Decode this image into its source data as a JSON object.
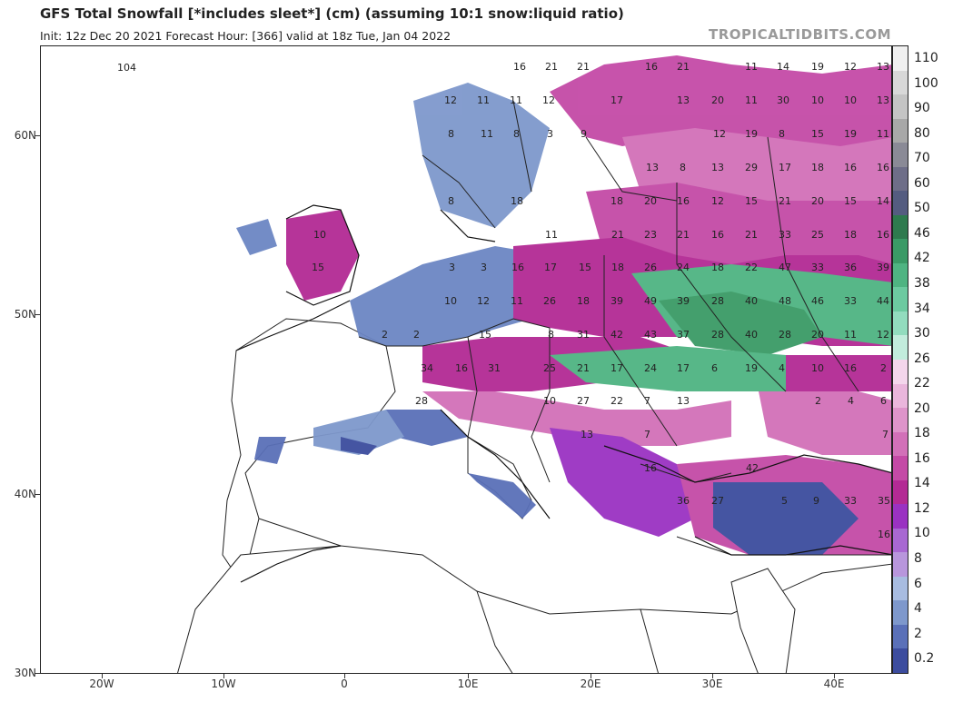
{
  "header": {
    "title": "GFS Total Snowfall [*includes sleet*] (cm) (assuming 10:1 snow:liquid ratio)",
    "subtitle": "Init: 12z Dec 20 2021   Forecast Hour: [366]   valid at 18z Tue, Jan 04 2022",
    "brand": "TROPICALTIDBITS.COM"
  },
  "axes": {
    "lat_labels": [
      "60N",
      "50N",
      "40N",
      "30N"
    ],
    "lon_labels": [
      "20W",
      "10W",
      "0",
      "10E",
      "20E",
      "30E",
      "40E"
    ]
  },
  "colorbar": {
    "labels": [
      "110",
      "100",
      "90",
      "80",
      "70",
      "60",
      "50",
      "46",
      "42",
      "38",
      "34",
      "30",
      "26",
      "22",
      "20",
      "18",
      "16",
      "14",
      "12",
      "10",
      "8",
      "6",
      "4",
      "2",
      "0.2"
    ],
    "colors": [
      "#f0f0f0",
      "#d8d8d8",
      "#c4c4c4",
      "#a8a8a8",
      "#8a8a96",
      "#6e6e88",
      "#545c80",
      "#2e7a4e",
      "#3a9a66",
      "#4fb482",
      "#6ccaa0",
      "#92dcbe",
      "#c2ecdc",
      "#f4d6ec",
      "#eab6dc",
      "#de94ca",
      "#d270b8",
      "#c44aa6",
      "#b32a94",
      "#9a32c2",
      "#a868d2",
      "#b896dc",
      "#a8bce0",
      "#7e98cc",
      "#5a70b8",
      "#3c4c9e"
    ]
  },
  "map_values": [
    {
      "v": "104"
    },
    {
      "v": "16"
    },
    {
      "v": "21"
    },
    {
      "v": "21"
    },
    {
      "v": "16"
    },
    {
      "v": "21"
    },
    {
      "v": "11"
    },
    {
      "v": "14"
    },
    {
      "v": "19"
    },
    {
      "v": "12"
    },
    {
      "v": "13"
    },
    {
      "v": "12"
    },
    {
      "v": "11"
    },
    {
      "v": "11"
    },
    {
      "v": "12"
    },
    {
      "v": "17"
    },
    {
      "v": "13"
    },
    {
      "v": "20"
    },
    {
      "v": "11"
    },
    {
      "v": "30"
    },
    {
      "v": "10"
    },
    {
      "v": "10"
    },
    {
      "v": "13"
    },
    {
      "v": "8"
    },
    {
      "v": "11"
    },
    {
      "v": "8"
    },
    {
      "v": "3"
    },
    {
      "v": "9"
    },
    {
      "v": "12"
    },
    {
      "v": "19"
    },
    {
      "v": "8"
    },
    {
      "v": "15"
    },
    {
      "v": "19"
    },
    {
      "v": "11"
    },
    {
      "v": "13"
    },
    {
      "v": "8"
    },
    {
      "v": "13"
    },
    {
      "v": "29"
    },
    {
      "v": "17"
    },
    {
      "v": "18"
    },
    {
      "v": "16"
    },
    {
      "v": "16"
    },
    {
      "v": "8"
    },
    {
      "v": "18"
    },
    {
      "v": "18"
    },
    {
      "v": "20"
    },
    {
      "v": "16"
    },
    {
      "v": "12"
    },
    {
      "v": "15"
    },
    {
      "v": "21"
    },
    {
      "v": "20"
    },
    {
      "v": "15"
    },
    {
      "v": "14"
    },
    {
      "v": "10"
    },
    {
      "v": "11"
    },
    {
      "v": "21"
    },
    {
      "v": "23"
    },
    {
      "v": "21"
    },
    {
      "v": "16"
    },
    {
      "v": "21"
    },
    {
      "v": "33"
    },
    {
      "v": "25"
    },
    {
      "v": "18"
    },
    {
      "v": "16"
    },
    {
      "v": "15"
    },
    {
      "v": "3"
    },
    {
      "v": "3"
    },
    {
      "v": "16"
    },
    {
      "v": "17"
    },
    {
      "v": "15"
    },
    {
      "v": "18"
    },
    {
      "v": "26"
    },
    {
      "v": "24"
    },
    {
      "v": "18"
    },
    {
      "v": "22"
    },
    {
      "v": "47"
    },
    {
      "v": "33"
    },
    {
      "v": "36"
    },
    {
      "v": "39"
    },
    {
      "v": "10"
    },
    {
      "v": "12"
    },
    {
      "v": "11"
    },
    {
      "v": "26"
    },
    {
      "v": "18"
    },
    {
      "v": "39"
    },
    {
      "v": "49"
    },
    {
      "v": "39"
    },
    {
      "v": "28"
    },
    {
      "v": "40"
    },
    {
      "v": "48"
    },
    {
      "v": "46"
    },
    {
      "v": "33"
    },
    {
      "v": "44"
    },
    {
      "v": "2"
    },
    {
      "v": "2"
    },
    {
      "v": "15"
    },
    {
      "v": "8"
    },
    {
      "v": "31"
    },
    {
      "v": "42"
    },
    {
      "v": "43"
    },
    {
      "v": "37"
    },
    {
      "v": "28"
    },
    {
      "v": "40"
    },
    {
      "v": "28"
    },
    {
      "v": "20"
    },
    {
      "v": "11"
    },
    {
      "v": "12"
    },
    {
      "v": "34"
    },
    {
      "v": "16"
    },
    {
      "v": "31"
    },
    {
      "v": "25"
    },
    {
      "v": "21"
    },
    {
      "v": "17"
    },
    {
      "v": "24"
    },
    {
      "v": "17"
    },
    {
      "v": "6"
    },
    {
      "v": "19"
    },
    {
      "v": "4"
    },
    {
      "v": "10"
    },
    {
      "v": "16"
    },
    {
      "v": "2"
    },
    {
      "v": "28"
    },
    {
      "v": "10"
    },
    {
      "v": "27"
    },
    {
      "v": "22"
    },
    {
      "v": "7"
    },
    {
      "v": "13"
    },
    {
      "v": "2"
    },
    {
      "v": "4"
    },
    {
      "v": "6"
    },
    {
      "v": "13"
    },
    {
      "v": "7"
    },
    {
      "v": "16"
    },
    {
      "v": "42"
    },
    {
      "v": "7"
    },
    {
      "v": "36"
    },
    {
      "v": "27"
    },
    {
      "v": "5"
    },
    {
      "v": "9"
    },
    {
      "v": "33"
    },
    {
      "v": "35"
    },
    {
      "v": "16"
    }
  ]
}
